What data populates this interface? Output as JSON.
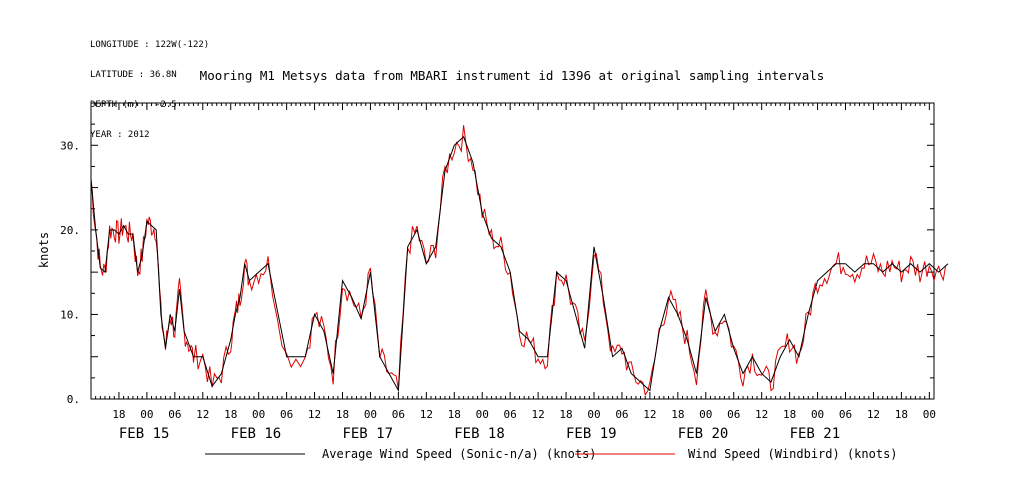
{
  "header": {
    "lines": [
      "LONGITUDE : 122W(-122)",
      "LATITUDE : 36.8N",
      "DEPTH (m) : -2.5",
      "YEAR : 2012"
    ]
  },
  "chart_data": {
    "type": "line",
    "title": "Mooring M1 Metsys data from MBARI instrument id 1396 at original sampling intervals",
    "ylabel": "knots",
    "xlabel": "",
    "ylim": [
      0,
      35
    ],
    "yticks": [
      0,
      10,
      20,
      30
    ],
    "ytick_labels": [
      "0.",
      "10.",
      "20.",
      "30."
    ],
    "xlim": [
      "2012-02-14 12:00",
      "2012-02-22 01:00"
    ],
    "x_hour_ticks": [
      "18",
      "00",
      "06",
      "12",
      "18",
      "00",
      "06",
      "12",
      "18",
      "00",
      "06",
      "12",
      "18",
      "00",
      "06",
      "12",
      "18",
      "00",
      "06",
      "12",
      "18",
      "00",
      "06",
      "12",
      "18",
      "00",
      "06",
      "12",
      "18",
      "00"
    ],
    "x_day_labels": [
      "FEB 15",
      "FEB 16",
      "FEB 17",
      "FEB 18",
      "FEB 19",
      "FEB 20",
      "FEB 21"
    ],
    "grid": false,
    "legend_position": "bottom",
    "series": [
      {
        "name": "Average Wind Speed (Sonic-n/a) (knots)",
        "color": "#000000",
        "x_hours": [
          0,
          1,
          2,
          3,
          4,
          5,
          6,
          7,
          8,
          9,
          10,
          11,
          12,
          13,
          14,
          15,
          16,
          17,
          18,
          19,
          20,
          21,
          22,
          24,
          26,
          28,
          30,
          31,
          32,
          33,
          34,
          36,
          38,
          42,
          46,
          48,
          50,
          52,
          54,
          56,
          58,
          60,
          62,
          64,
          66,
          68,
          70,
          72,
          74,
          76,
          78,
          80,
          82,
          84,
          86,
          88,
          90,
          92,
          94,
          96,
          98,
          100,
          102,
          104,
          106,
          108,
          110,
          112,
          114,
          116,
          118,
          120,
          122,
          124,
          126,
          128,
          130,
          132,
          134,
          136,
          138,
          140,
          142,
          144,
          146,
          148,
          150,
          152,
          154,
          156,
          158,
          160,
          162,
          164,
          166,
          168,
          170,
          172,
          174,
          176,
          178,
          180,
          182,
          184
        ],
        "values": [
          26,
          20,
          15.5,
          15,
          20,
          20,
          19.5,
          20.5,
          19.5,
          19.5,
          15,
          17,
          21,
          20.5,
          20,
          10,
          6,
          10,
          8,
          13,
          8,
          6.5,
          5,
          5,
          1.5,
          3,
          7,
          10,
          12,
          16,
          14,
          15,
          16,
          5,
          5,
          10,
          8,
          3,
          14,
          12,
          9.5,
          15,
          5,
          3,
          1,
          18,
          20,
          16,
          18,
          27,
          30,
          31,
          28,
          22,
          19,
          18,
          15,
          8,
          7,
          5,
          5,
          15,
          14,
          10,
          6,
          18,
          12,
          5,
          6,
          3,
          2,
          1,
          8,
          12,
          10,
          7,
          3,
          12,
          8,
          10,
          6,
          3,
          5,
          3,
          2,
          5,
          7,
          5,
          10,
          14,
          15,
          16,
          16,
          15,
          16,
          16,
          15,
          16,
          15,
          16,
          15,
          16,
          15,
          16
        ],
        "values_note": ""
      },
      {
        "name": "Wind Speed (Windbird) (knots)",
        "color": "#e00000",
        "values": []
      }
    ]
  },
  "legend": [
    {
      "label": "Average Wind Speed (Sonic-n/a) (knots)",
      "color": "#000000"
    },
    {
      "label": "Wind Speed (Windbird) (knots)",
      "color": "#e00000"
    }
  ]
}
